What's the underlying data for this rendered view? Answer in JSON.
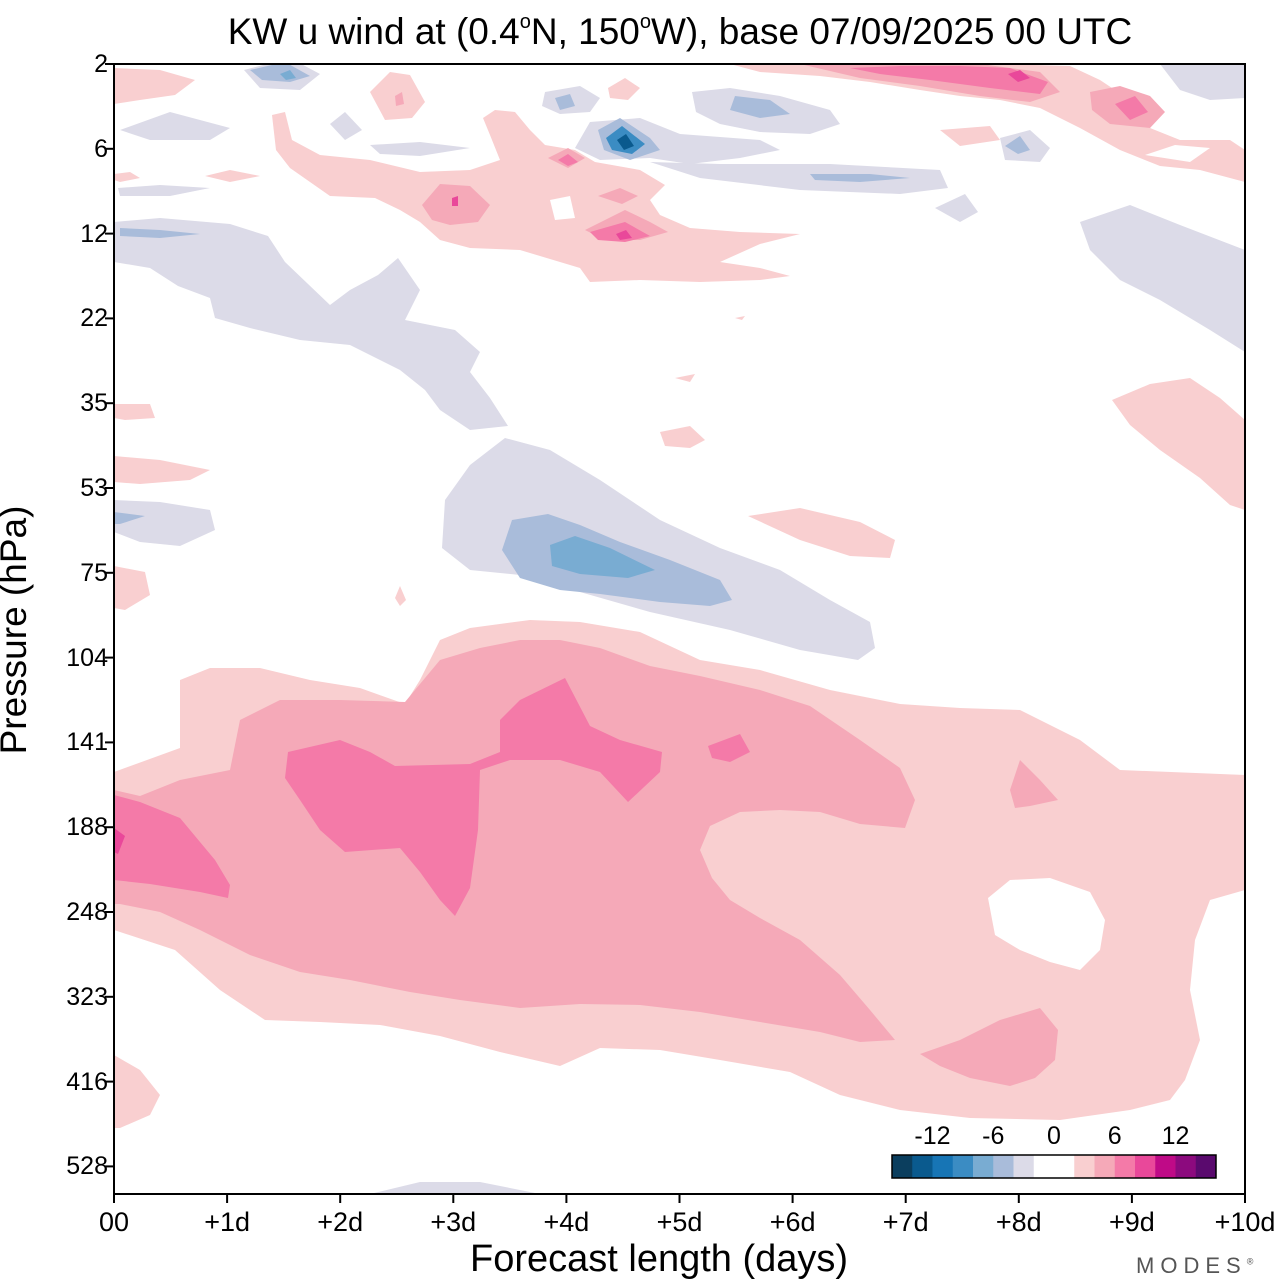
{
  "title": {
    "prefix": "KW u wind at (0.4",
    "deg1": "o",
    "mid": "N, 150",
    "deg2": "o",
    "suffix": "W),  base 07/09/2025  00 UTC"
  },
  "brand": {
    "name": "MODES",
    "mark": "®"
  },
  "chart_data": {
    "type": "heatmap",
    "title": "KW u wind at (0.4°N, 150°W),  base 07/09/2025  00 UTC",
    "xlabel": "Forecast length (days)",
    "ylabel": "Pressure (hPa)",
    "x_ticks": [
      "00",
      "+1d",
      "+2d",
      "+3d",
      "+4d",
      "+5d",
      "+6d",
      "+7d",
      "+8d",
      "+9d",
      "+10d"
    ],
    "x_range_days": [
      0,
      10
    ],
    "y_ticks": [
      "2",
      "6",
      "12",
      "22",
      "35",
      "53",
      "75",
      "104",
      "141",
      "188",
      "248",
      "323",
      "416",
      "528"
    ],
    "y_range_hPa": [
      2,
      528
    ],
    "y_order": "pressure decreasing upward (top = 2 hPa)",
    "colorbar": {
      "tick_labels": [
        "-12",
        "-6",
        "0",
        "6",
        "12"
      ],
      "tick_values": [
        -12,
        -6,
        0,
        6,
        12
      ],
      "colors": [
        "#0b3e5e",
        "#0a5a8e",
        "#1775b5",
        "#3b8cc3",
        "#79acd2",
        "#a9bcda",
        "#dcdbe8",
        "#ffffff",
        "#ffffff",
        "#f9cfd0",
        "#f5a9b8",
        "#f47aa8",
        "#e9489a",
        "#bf0a87",
        "#8c0a7e",
        "#5a0a6e"
      ]
    },
    "features": [
      {
        "name": "strongest positive (westerly) core",
        "x_days": [
          0,
          2.7
        ],
        "pressure_hPa": [
          150,
          250
        ],
        "value_approx": 6
      },
      {
        "name": "upper positive core",
        "x_days": [
          3.5,
          4.8
        ],
        "pressure_hPa": [
          110,
          160
        ],
        "value_approx": 6
      },
      {
        "name": "broad positive layer",
        "x_days": [
          0,
          10
        ],
        "pressure_hPa": [
          100,
          450
        ],
        "value_approx": 3
      },
      {
        "name": "negative (easterly) anomaly",
        "x_days": [
          3,
          6.8
        ],
        "pressure_hPa": [
          50,
          100
        ],
        "value_approx": -4
      },
      {
        "name": "stratospheric positive maximum",
        "x_days": [
          7,
          9
        ],
        "pressure_hPa": [
          2,
          3
        ],
        "value_approx": 9
      },
      {
        "name": "stratospheric negative pocket",
        "x_days": [
          4.2,
          4.8
        ],
        "pressure_hPa": [
          5,
          7
        ],
        "value_approx": -9
      }
    ]
  }
}
